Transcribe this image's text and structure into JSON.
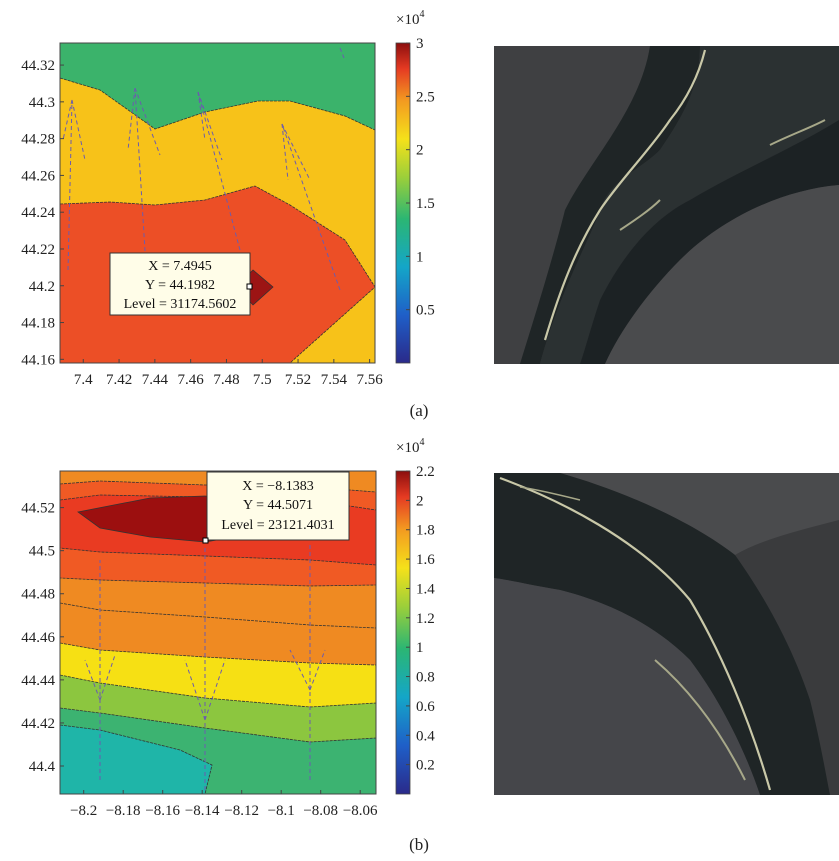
{
  "chart_data": [
    {
      "panel": "a",
      "type": "contour",
      "caption": "(a)",
      "x_ticks": [
        "7.4",
        "7.42",
        "7.44",
        "7.46",
        "7.48",
        "7.5",
        "7.52",
        "7.54",
        "7.56"
      ],
      "y_ticks": [
        "44.32",
        "44.3",
        "44.28",
        "44.26",
        "44.24",
        "44.22",
        "44.2",
        "44.18",
        "44.16"
      ],
      "xlim": [
        7.387,
        7.563
      ],
      "ylim": [
        44.158,
        44.332
      ],
      "colorbar": {
        "multiplier": "×10",
        "exponent": "4",
        "min": 0,
        "max": 30000,
        "ticks": [
          "3",
          "2.5",
          "2",
          "1.5",
          "1",
          "0.5"
        ],
        "tick_values": [
          3,
          2.5,
          2,
          1.5,
          1,
          0.5
        ]
      },
      "levels": [
        {
          "color": "#3bb36b",
          "value_range": [
            10000,
            17000
          ]
        },
        {
          "color": "#f7c219",
          "value_range": [
            17000,
            23000
          ]
        },
        {
          "color": "#ec4f26",
          "value_range": [
            23000,
            30000
          ]
        },
        {
          "color": "#9c1414",
          "value_range": [
            30000,
            31200
          ]
        }
      ],
      "datatip": {
        "x": 7.4945,
        "y": 44.1982,
        "level": 31174.5602,
        "line1": "X = 7.4945",
        "line2": "Y = 44.1982",
        "line3": "Level = 31174.5602"
      }
    },
    {
      "panel": "b",
      "type": "contour",
      "caption": "(b)",
      "x_ticks": [
        "−8.2",
        "−8.18",
        "−8.16",
        "−8.14",
        "−8.12",
        "−8.1",
        "−8.08",
        "−8.06"
      ],
      "y_ticks": [
        "44.52",
        "44.5",
        "44.48",
        "44.46",
        "44.44",
        "44.42",
        "44.4"
      ],
      "xlim": [
        -8.212,
        -8.052
      ],
      "ylim": [
        44.387,
        44.537
      ],
      "colorbar": {
        "multiplier": "×10",
        "exponent": "4",
        "min": 0,
        "max": 22000,
        "ticks": [
          "2.2",
          "2",
          "1.8",
          "1.6",
          "1.4",
          "1.2",
          "1",
          "0.8",
          "0.6",
          "0.4",
          "0.2"
        ],
        "tick_values": [
          2.2,
          2,
          1.8,
          1.6,
          1.4,
          1.2,
          1,
          0.8,
          0.6,
          0.4,
          0.2
        ]
      },
      "levels": [
        {
          "color": "#ef8a22",
          "value_range": [
            16000,
            18000
          ]
        },
        {
          "color": "#e93b22",
          "value_range": [
            18000,
            20000
          ]
        },
        {
          "color": "#f05a24",
          "value_range": [
            17000,
            18000
          ]
        },
        {
          "color": "#f6e014",
          "value_range": [
            13000,
            15000
          ]
        },
        {
          "color": "#8cc63f",
          "value_range": [
            11000,
            13000
          ]
        },
        {
          "color": "#3cb371",
          "value_range": [
            9000,
            11000
          ]
        },
        {
          "color": "#1fb5a8",
          "value_range": [
            6000,
            8000
          ]
        },
        {
          "color": "#9c0f0f",
          "value_range": [
            22000,
            23200
          ]
        }
      ],
      "datatip": {
        "x": -8.1383,
        "y": 44.5071,
        "level": 23121.4031,
        "line1": "X = −8.1383",
        "line2": "Y = 44.5071",
        "line3": "Level = 23121.4031"
      }
    }
  ],
  "images": [
    {
      "name": "photo-a",
      "description_icon": "specimen-photo-icon"
    },
    {
      "name": "photo-b",
      "description_icon": "specimen-photo-icon"
    }
  ]
}
